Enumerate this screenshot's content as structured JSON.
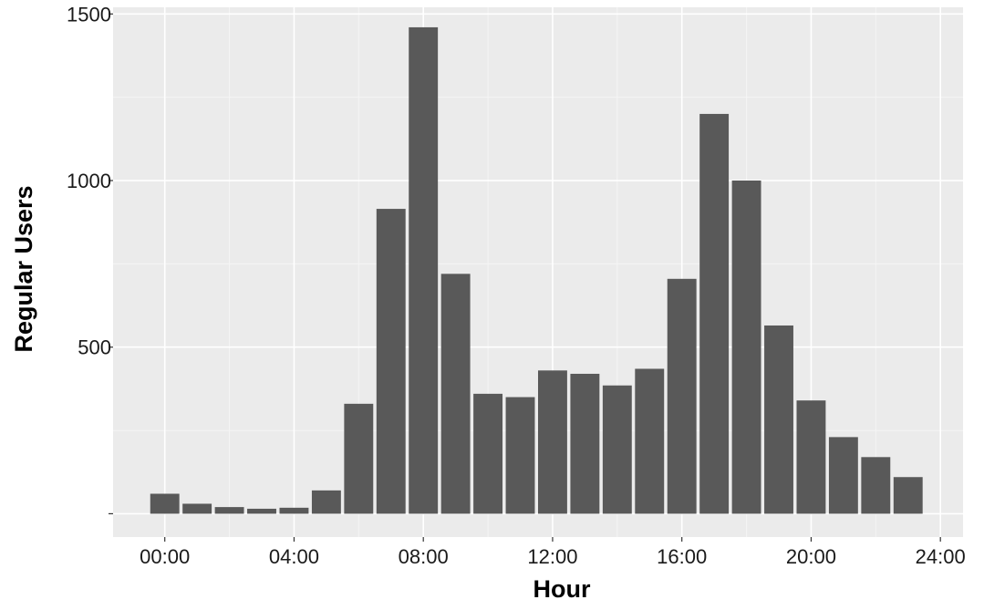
{
  "chart_data": {
    "type": "bar",
    "xlabel": "Hour",
    "ylabel": "Regular Users",
    "x_tick_labels": [
      "00:00",
      "04:00",
      "08:00",
      "12:00",
      "16:00",
      "20:00",
      "24:00"
    ],
    "y_tick_labels": [
      "",
      "500",
      "1000",
      "1500"
    ],
    "y_ticks": [
      0,
      500,
      1000,
      1500
    ],
    "x_ticks": [
      0,
      4,
      8,
      12,
      16,
      20,
      24
    ],
    "xlim": [
      -1.6,
      24.7
    ],
    "ylim": [
      -70,
      1520
    ],
    "hours": [
      0,
      1,
      2,
      3,
      4,
      5,
      6,
      7,
      8,
      9,
      10,
      11,
      12,
      13,
      14,
      15,
      16,
      17,
      18,
      19,
      20,
      21,
      22,
      23
    ],
    "values": [
      60,
      30,
      20,
      15,
      18,
      70,
      330,
      915,
      1460,
      720,
      360,
      350,
      430,
      420,
      385,
      435,
      705,
      1200,
      1000,
      565,
      340,
      230,
      170,
      110
    ],
    "grid": true,
    "legend": "none",
    "colors": {
      "bar": "#595959",
      "panel": "#ebebeb",
      "grid_major": "#ffffff",
      "grid_minor": "#f5f5f5"
    }
  }
}
